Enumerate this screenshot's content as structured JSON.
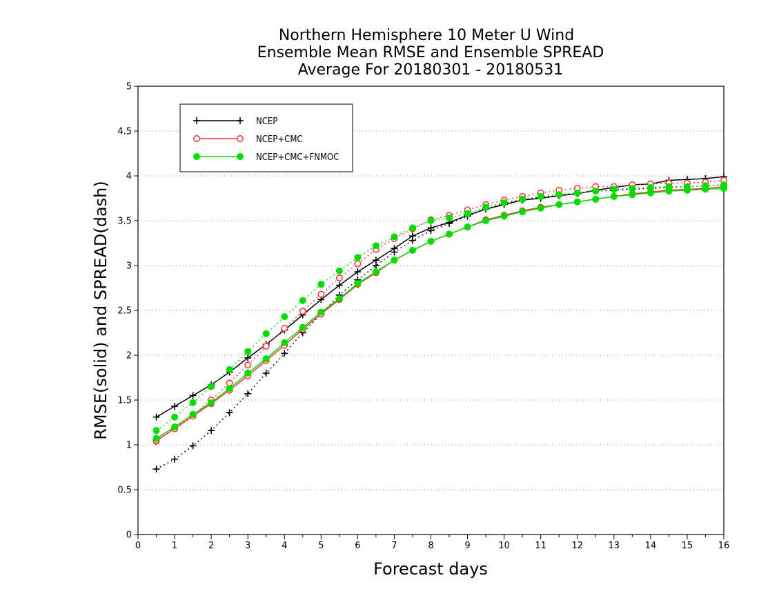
{
  "chart_data": {
    "type": "line",
    "title_lines": [
      "Northern Hemisphere 10 Meter U Wind",
      "Ensemble Mean RMSE and Ensemble SPREAD",
      "Average For 20180301 - 20180531"
    ],
    "xlabel": "Forecast days",
    "ylabel": "RMSE(solid) and SPREAD(dash)",
    "xlim": [
      0,
      16
    ],
    "ylim": [
      0,
      5
    ],
    "x_ticks": [
      "0",
      "1",
      "2",
      "3",
      "4",
      "5",
      "6",
      "7",
      "8",
      "9",
      "10",
      "11",
      "12",
      "13",
      "14",
      "15",
      "16"
    ],
    "y_ticks": [
      "0",
      "0.5",
      "1",
      "1.5",
      "2",
      "2.5",
      "3",
      "3.5",
      "4",
      "4.5",
      "5"
    ],
    "grid": "horizontal dotted",
    "legend_position": "top-left",
    "x": [
      0.5,
      1,
      1.5,
      2,
      2.5,
      3,
      3.5,
      4,
      4.5,
      5,
      5.5,
      6,
      6.5,
      7,
      7.5,
      8,
      8.5,
      9,
      9.5,
      10,
      10.5,
      11,
      11.5,
      12,
      12.5,
      13,
      13.5,
      14,
      14.5,
      15,
      15.5,
      16
    ],
    "series": [
      {
        "name": "NCEP",
        "color": "#000000",
        "marker": "plus",
        "rmse": [
          1.31,
          1.43,
          1.55,
          1.67,
          1.81,
          1.97,
          2.12,
          2.28,
          2.45,
          2.62,
          2.78,
          2.93,
          3.06,
          3.19,
          3.33,
          3.42,
          3.48,
          3.56,
          3.63,
          3.68,
          3.73,
          3.75,
          3.78,
          3.8,
          3.84,
          3.87,
          3.9,
          3.91,
          3.95,
          3.96,
          3.97,
          3.99
        ],
        "spread": [
          0.73,
          0.84,
          0.99,
          1.16,
          1.36,
          1.57,
          1.8,
          2.02,
          2.25,
          2.46,
          2.67,
          2.84,
          3.0,
          3.15,
          3.28,
          3.39,
          3.47,
          3.55,
          3.63,
          3.69,
          3.73,
          3.76,
          3.79,
          3.81,
          3.83,
          3.84,
          3.85,
          3.86,
          3.87,
          3.88,
          3.89,
          3.9
        ]
      },
      {
        "name": "NCEP+CMC",
        "color": "#ff3030",
        "marker": "open-circle",
        "rmse": [
          1.05,
          1.18,
          1.32,
          1.46,
          1.61,
          1.77,
          1.94,
          2.11,
          2.29,
          2.46,
          2.62,
          2.79,
          2.92,
          3.06,
          3.17,
          3.27,
          3.35,
          3.43,
          3.51,
          3.56,
          3.61,
          3.65,
          3.68,
          3.71,
          3.74,
          3.77,
          3.8,
          3.82,
          3.84,
          3.85,
          3.86,
          3.88
        ],
        "spread": [
          1.04,
          1.18,
          1.33,
          1.5,
          1.69,
          1.89,
          2.1,
          2.3,
          2.49,
          2.68,
          2.86,
          3.02,
          3.18,
          3.3,
          3.41,
          3.51,
          3.56,
          3.62,
          3.68,
          3.73,
          3.77,
          3.81,
          3.84,
          3.86,
          3.88,
          3.88,
          3.9,
          3.91,
          3.92,
          3.92,
          3.93,
          3.95
        ]
      },
      {
        "name": "NCEP+CMC+FNMOC",
        "color": "#00dd00",
        "marker": "filled-circle",
        "rmse": [
          1.07,
          1.2,
          1.34,
          1.47,
          1.63,
          1.8,
          1.96,
          2.14,
          2.31,
          2.48,
          2.63,
          2.8,
          2.93,
          3.06,
          3.17,
          3.27,
          3.35,
          3.43,
          3.5,
          3.55,
          3.6,
          3.64,
          3.68,
          3.71,
          3.74,
          3.77,
          3.79,
          3.81,
          3.83,
          3.84,
          3.85,
          3.86
        ],
        "spread": [
          1.16,
          1.31,
          1.47,
          1.65,
          1.84,
          2.04,
          2.24,
          2.43,
          2.61,
          2.79,
          2.94,
          3.09,
          3.22,
          3.32,
          3.42,
          3.5,
          3.53,
          3.58,
          3.65,
          3.7,
          3.74,
          3.77,
          3.79,
          3.81,
          3.83,
          3.85,
          3.86,
          3.87,
          3.88,
          3.88,
          3.89,
          3.9
        ]
      }
    ]
  }
}
